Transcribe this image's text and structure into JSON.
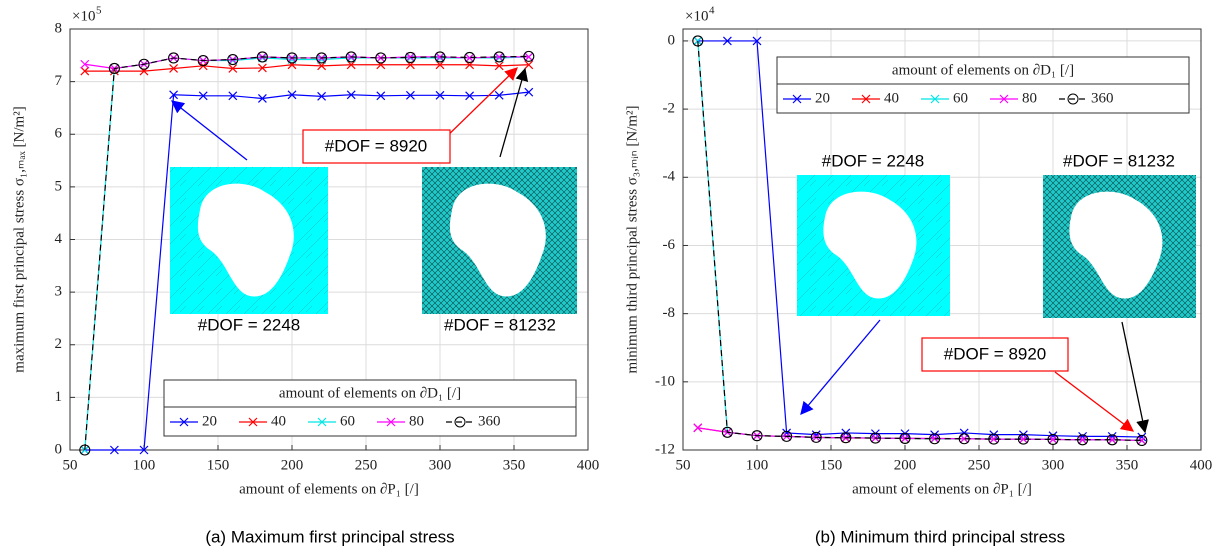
{
  "chart_data": [
    {
      "type": "line",
      "caption": "(a) Maximum first principal stress",
      "xlabel": "amount of elements on ∂P₁ [/]",
      "ylabel": "maximum first principal stress σ₁,ₘₐₓ [N/m²]",
      "y_multiplier": "×10",
      "y_multiplier_exponent": "5",
      "xlim": [
        50,
        400
      ],
      "xticks": [
        50,
        100,
        150,
        200,
        250,
        300,
        350,
        400
      ],
      "ylim": [
        0,
        8
      ],
      "yticks": [
        0,
        1,
        2,
        3,
        4,
        5,
        6,
        7,
        8
      ],
      "grid": true,
      "legend_title": "amount of elements on ∂D₁ [/]",
      "legend_position": "lower right",
      "x": [
        60,
        80,
        100,
        120,
        140,
        160,
        180,
        200,
        220,
        240,
        260,
        280,
        300,
        320,
        340,
        360
      ],
      "series": [
        {
          "name": "20",
          "color": "#0000ff",
          "marker": "x",
          "line_style": "solid",
          "values": [
            0,
            0,
            0,
            6.75,
            6.73,
            6.73,
            6.68,
            6.75,
            6.72,
            6.75,
            6.73,
            6.74,
            6.74,
            6.73,
            6.74,
            6.8
          ]
        },
        {
          "name": "40",
          "color": "#ff0000",
          "marker": "x",
          "line_style": "solid",
          "values": [
            7.2,
            7.2,
            7.2,
            7.25,
            7.3,
            7.25,
            7.26,
            7.32,
            7.3,
            7.32,
            7.32,
            7.32,
            7.32,
            7.32,
            7.3,
            7.32
          ]
        },
        {
          "name": "60",
          "color": "#00e5e5",
          "marker": "x",
          "line_style": "solid",
          "values": [
            0,
            7.25,
            7.33,
            7.45,
            7.4,
            7.4,
            7.45,
            7.42,
            7.42,
            7.45,
            7.45,
            7.45,
            7.45,
            7.45,
            7.45,
            7.47
          ]
        },
        {
          "name": "80",
          "color": "#ff00ff",
          "marker": "x",
          "line_style": "solid",
          "values": [
            7.33,
            7.25,
            7.33,
            7.45,
            7.4,
            7.42,
            7.47,
            7.45,
            7.45,
            7.47,
            7.45,
            7.47,
            7.47,
            7.45,
            7.47,
            7.47
          ]
        },
        {
          "name": "360",
          "color": "#000000",
          "marker": "o",
          "line_style": "dashed",
          "values": [
            0,
            7.25,
            7.33,
            7.45,
            7.4,
            7.42,
            7.47,
            7.45,
            7.45,
            7.47,
            7.45,
            7.46,
            7.47,
            7.46,
            7.47,
            7.48
          ]
        }
      ],
      "annotations": [
        "#DOF = 8920",
        "#DOF = 2248",
        "#DOF = 81232"
      ]
    },
    {
      "type": "line",
      "caption": "(b) Minimum third principal stress",
      "xlabel": "amount of elements on ∂P₁ [/]",
      "ylabel": "minimum third principal stress σ₃,ₘᵢₙ [N/m²]",
      "y_multiplier": "×10",
      "y_multiplier_exponent": "4",
      "xlim": [
        50,
        400
      ],
      "xticks": [
        50,
        100,
        150,
        200,
        250,
        300,
        350,
        400
      ],
      "ylim": [
        -12,
        0.35
      ],
      "yticks": [
        -12,
        -10,
        -8,
        -6,
        -4,
        -2,
        0
      ],
      "grid": true,
      "legend_title": "amount of elements on ∂D₁ [/]",
      "legend_position": "upper right",
      "x": [
        60,
        80,
        100,
        120,
        140,
        160,
        180,
        200,
        220,
        240,
        260,
        280,
        300,
        320,
        340,
        360
      ],
      "series": [
        {
          "name": "20",
          "color": "#0000ff",
          "marker": "x",
          "line_style": "solid",
          "values": [
            0,
            0,
            0,
            -11.5,
            -11.55,
            -11.5,
            -11.52,
            -11.52,
            -11.55,
            -11.5,
            -11.55,
            -11.55,
            -11.58,
            -11.6,
            -11.6,
            -11.62
          ]
        },
        {
          "name": "40",
          "color": "#ff0000",
          "marker": "x",
          "line_style": "solid",
          "values": [
            -11.35,
            -11.48,
            -11.58,
            -11.6,
            -11.63,
            -11.65,
            -11.65,
            -11.66,
            -11.67,
            -11.67,
            -11.68,
            -11.68,
            -11.69,
            -11.7,
            -11.7,
            -11.72
          ]
        },
        {
          "name": "60",
          "color": "#00e5e5",
          "marker": "x",
          "line_style": "solid",
          "values": [
            0,
            -11.48,
            -11.58,
            -11.6,
            -11.63,
            -11.64,
            -11.65,
            -11.66,
            -11.67,
            -11.67,
            -11.68,
            -11.68,
            -11.69,
            -11.7,
            -11.7,
            -11.72
          ]
        },
        {
          "name": "80",
          "color": "#ff00ff",
          "marker": "x",
          "line_style": "solid",
          "values": [
            -11.35,
            -11.48,
            -11.58,
            -11.6,
            -11.63,
            -11.64,
            -11.65,
            -11.66,
            -11.66,
            -11.67,
            -11.68,
            -11.68,
            -11.69,
            -11.7,
            -11.7,
            -11.72
          ]
        },
        {
          "name": "360",
          "color": "#000000",
          "marker": "o",
          "line_style": "dashed",
          "values": [
            0,
            -11.48,
            -11.58,
            -11.6,
            -11.63,
            -11.64,
            -11.65,
            -11.66,
            -11.67,
            -11.67,
            -11.68,
            -11.68,
            -11.69,
            -11.7,
            -11.7,
            -11.72
          ]
        }
      ],
      "annotations": [
        "#DOF = 2248",
        "#DOF = 81232",
        "#DOF = 8920"
      ]
    }
  ]
}
